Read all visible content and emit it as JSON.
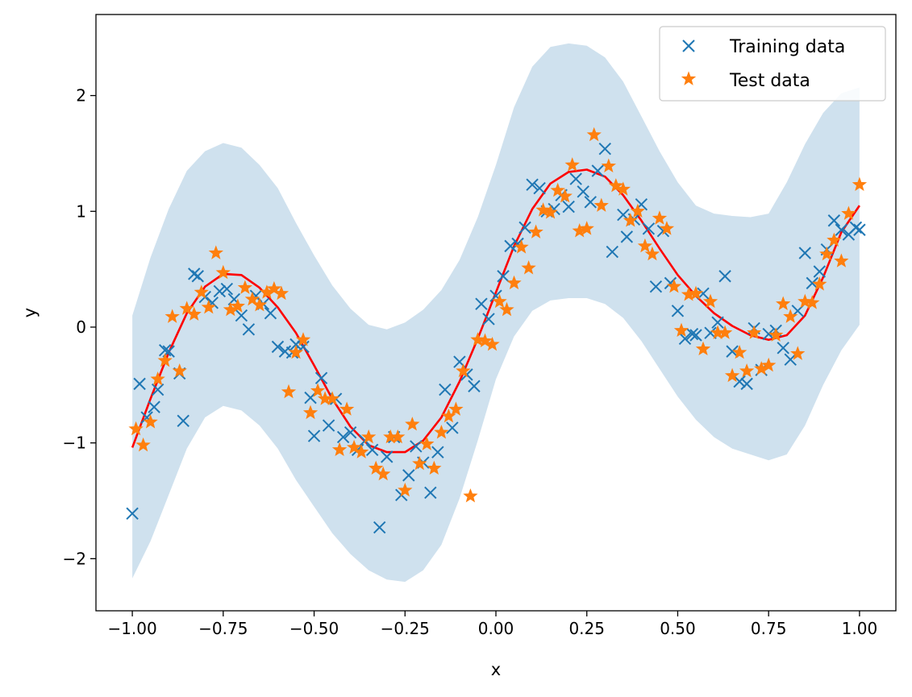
{
  "chart_data": {
    "type": "scatter",
    "title": "",
    "xlabel": "x",
    "ylabel": "y",
    "xlim": [
      -1.1,
      1.1
    ],
    "ylim": [
      -2.45,
      2.7
    ],
    "xticks": [
      -1.0,
      -0.75,
      -0.5,
      -0.25,
      0.0,
      0.25,
      0.5,
      0.75,
      1.0
    ],
    "xtick_labels": [
      "−1.00",
      "−0.75",
      "−0.50",
      "−0.25",
      "0.00",
      "0.25",
      "0.50",
      "0.75",
      "1.00"
    ],
    "yticks": [
      -2,
      -1,
      0,
      1,
      2
    ],
    "ytick_labels": [
      "−2",
      "−1",
      "0",
      "1",
      "2"
    ],
    "grid": false,
    "legend_position": "upper-right",
    "legend": [
      "Training data",
      "Test data"
    ],
    "colors": {
      "training": "#1f77b4",
      "test": "#ff7f0e",
      "mean": "#ff0000",
      "band": "#cfe1ee"
    },
    "mean_curve": {
      "x": [
        -1.0,
        -0.95,
        -0.9,
        -0.85,
        -0.8,
        -0.75,
        -0.7,
        -0.65,
        -0.6,
        -0.55,
        -0.5,
        -0.45,
        -0.4,
        -0.35,
        -0.3,
        -0.25,
        -0.2,
        -0.15,
        -0.1,
        -0.05,
        0.0,
        0.05,
        0.1,
        0.15,
        0.2,
        0.25,
        0.3,
        0.35,
        0.4,
        0.45,
        0.5,
        0.55,
        0.6,
        0.65,
        0.7,
        0.75,
        0.8,
        0.85,
        0.9,
        0.95,
        1.0
      ],
      "y": [
        -1.04,
        -0.62,
        -0.22,
        0.12,
        0.35,
        0.46,
        0.45,
        0.34,
        0.17,
        -0.05,
        -0.33,
        -0.62,
        -0.86,
        -1.02,
        -1.08,
        -1.08,
        -0.98,
        -0.78,
        -0.47,
        -0.1,
        0.3,
        0.7,
        1.02,
        1.24,
        1.34,
        1.36,
        1.3,
        1.14,
        0.92,
        0.68,
        0.45,
        0.27,
        0.12,
        0.01,
        -0.07,
        -0.11,
        -0.07,
        0.1,
        0.43,
        0.82,
        1.05
      ]
    },
    "confidence_band": {
      "x": [
        -1.0,
        -0.95,
        -0.9,
        -0.85,
        -0.8,
        -0.75,
        -0.7,
        -0.65,
        -0.6,
        -0.55,
        -0.5,
        -0.45,
        -0.4,
        -0.35,
        -0.3,
        -0.25,
        -0.2,
        -0.15,
        -0.1,
        -0.05,
        0.0,
        0.05,
        0.1,
        0.15,
        0.2,
        0.25,
        0.3,
        0.35,
        0.4,
        0.45,
        0.5,
        0.55,
        0.6,
        0.65,
        0.7,
        0.75,
        0.8,
        0.85,
        0.9,
        0.95,
        1.0
      ],
      "upper": [
        0.1,
        0.6,
        1.02,
        1.35,
        1.52,
        1.59,
        1.55,
        1.4,
        1.2,
        0.9,
        0.62,
        0.36,
        0.16,
        0.02,
        -0.02,
        0.04,
        0.15,
        0.32,
        0.58,
        0.95,
        1.4,
        1.9,
        2.25,
        2.42,
        2.45,
        2.43,
        2.33,
        2.12,
        1.82,
        1.52,
        1.25,
        1.05,
        0.98,
        0.96,
        0.95,
        0.98,
        1.25,
        1.58,
        1.85,
        2.02,
        2.07
      ],
      "lower": [
        -2.17,
        -1.85,
        -1.45,
        -1.05,
        -0.78,
        -0.68,
        -0.72,
        -0.85,
        -1.05,
        -1.32,
        -1.55,
        -1.78,
        -1.96,
        -2.1,
        -2.18,
        -2.2,
        -2.1,
        -1.88,
        -1.48,
        -0.98,
        -0.45,
        -0.08,
        0.14,
        0.23,
        0.25,
        0.25,
        0.2,
        0.08,
        -0.12,
        -0.36,
        -0.6,
        -0.8,
        -0.95,
        -1.05,
        -1.1,
        -1.15,
        -1.1,
        -0.85,
        -0.5,
        -0.2,
        0.02
      ]
    },
    "series": [
      {
        "name": "Training data",
        "marker": "x",
        "x": [
          -1.0,
          -0.98,
          -0.96,
          -0.94,
          -0.93,
          -0.91,
          -0.9,
          -0.87,
          -0.86,
          -0.83,
          -0.82,
          -0.8,
          -0.78,
          -0.76,
          -0.74,
          -0.72,
          -0.7,
          -0.68,
          -0.66,
          -0.64,
          -0.62,
          -0.6,
          -0.58,
          -0.56,
          -0.55,
          -0.53,
          -0.51,
          -0.5,
          -0.48,
          -0.46,
          -0.44,
          -0.42,
          -0.4,
          -0.38,
          -0.36,
          -0.34,
          -0.32,
          -0.3,
          -0.28,
          -0.26,
          -0.24,
          -0.22,
          -0.2,
          -0.18,
          -0.16,
          -0.14,
          -0.12,
          -0.1,
          -0.08,
          -0.06,
          -0.04,
          -0.02,
          0.0,
          0.02,
          0.04,
          0.06,
          0.08,
          0.1,
          0.12,
          0.14,
          0.16,
          0.18,
          0.2,
          0.22,
          0.24,
          0.26,
          0.28,
          0.3,
          0.32,
          0.35,
          0.36,
          0.38,
          0.4,
          0.42,
          0.44,
          0.46,
          0.48,
          0.5,
          0.52,
          0.54,
          0.55,
          0.57,
          0.59,
          0.61,
          0.63,
          0.65,
          0.67,
          0.69,
          0.71,
          0.73,
          0.75,
          0.77,
          0.79,
          0.81,
          0.83,
          0.85,
          0.87,
          0.89,
          0.91,
          0.93,
          0.95,
          0.97,
          0.99,
          1.0
        ],
        "y": [
          -1.61,
          -0.49,
          -0.78,
          -0.69,
          -0.54,
          -0.2,
          -0.21,
          -0.4,
          -0.81,
          0.46,
          0.44,
          0.26,
          0.21,
          0.31,
          0.33,
          0.24,
          0.1,
          -0.02,
          0.27,
          0.2,
          0.12,
          -0.17,
          -0.21,
          -0.22,
          -0.15,
          -0.17,
          -0.61,
          -0.94,
          -0.44,
          -0.85,
          -0.62,
          -0.95,
          -0.91,
          -1.06,
          -0.98,
          -1.06,
          -1.73,
          -1.12,
          -0.95,
          -1.45,
          -1.28,
          -1.03,
          -1.17,
          -1.43,
          -1.08,
          -0.54,
          -0.87,
          -0.3,
          -0.41,
          -0.51,
          0.2,
          0.07,
          0.27,
          0.44,
          0.7,
          0.72,
          0.86,
          1.23,
          1.2,
          1.0,
          1.02,
          1.14,
          1.04,
          1.28,
          1.17,
          1.08,
          1.35,
          1.54,
          0.65,
          0.97,
          0.78,
          0.93,
          1.06,
          0.85,
          0.35,
          0.83,
          0.38,
          0.14,
          -0.1,
          -0.06,
          -0.07,
          0.29,
          -0.05,
          0.04,
          0.44,
          -0.21,
          -0.47,
          -0.49,
          -0.01,
          -0.37,
          -0.06,
          -0.03,
          -0.18,
          -0.28,
          0.14,
          0.64,
          0.38,
          0.48,
          0.67,
          0.92,
          0.84,
          0.8,
          0.86,
          0.84
        ]
      },
      {
        "name": "Test data",
        "marker": "*",
        "x": [
          -0.99,
          -0.97,
          -0.95,
          -0.93,
          -0.91,
          -0.89,
          -0.87,
          -0.85,
          -0.83,
          -0.81,
          -0.79,
          -0.77,
          -0.75,
          -0.73,
          -0.71,
          -0.69,
          -0.67,
          -0.65,
          -0.63,
          -0.61,
          -0.59,
          -0.57,
          -0.55,
          -0.53,
          -0.51,
          -0.49,
          -0.47,
          -0.45,
          -0.43,
          -0.41,
          -0.39,
          -0.37,
          -0.35,
          -0.33,
          -0.31,
          -0.29,
          -0.27,
          -0.25,
          -0.23,
          -0.21,
          -0.19,
          -0.17,
          -0.15,
          -0.13,
          -0.11,
          -0.09,
          -0.07,
          -0.05,
          -0.03,
          -0.01,
          0.01,
          0.03,
          0.05,
          0.07,
          0.09,
          0.11,
          0.13,
          0.15,
          0.17,
          0.19,
          0.21,
          0.23,
          0.25,
          0.27,
          0.29,
          0.31,
          0.33,
          0.35,
          0.37,
          0.39,
          0.41,
          0.43,
          0.45,
          0.47,
          0.49,
          0.51,
          0.53,
          0.55,
          0.57,
          0.59,
          0.61,
          0.63,
          0.65,
          0.67,
          0.69,
          0.71,
          0.73,
          0.75,
          0.77,
          0.79,
          0.81,
          0.83,
          0.85,
          0.87,
          0.89,
          0.91,
          0.93,
          0.95,
          0.97,
          1.0
        ],
        "y": [
          -0.88,
          -1.02,
          -0.82,
          -0.45,
          -0.29,
          0.09,
          -0.38,
          0.16,
          0.11,
          0.3,
          0.17,
          0.64,
          0.47,
          0.15,
          0.18,
          0.34,
          0.24,
          0.19,
          0.3,
          0.33,
          0.29,
          -0.56,
          -0.22,
          -0.11,
          -0.74,
          -0.55,
          -0.62,
          -0.62,
          -1.06,
          -0.71,
          -1.04,
          -1.08,
          -0.95,
          -1.22,
          -1.27,
          -0.95,
          -0.95,
          -1.41,
          -0.84,
          -1.18,
          -1.01,
          -1.22,
          -0.91,
          -0.77,
          -0.71,
          -0.38,
          -1.46,
          -0.11,
          -0.12,
          -0.15,
          0.22,
          0.15,
          0.38,
          0.69,
          0.51,
          0.82,
          1.01,
          0.99,
          1.18,
          1.13,
          1.4,
          0.83,
          0.85,
          1.66,
          1.05,
          1.39,
          1.22,
          1.19,
          0.92,
          1.0,
          0.7,
          0.63,
          0.94,
          0.85,
          0.35,
          -0.03,
          0.28,
          0.29,
          -0.19,
          0.22,
          -0.05,
          -0.05,
          -0.42,
          -0.22,
          -0.38,
          -0.05,
          -0.36,
          -0.33,
          -0.07,
          0.2,
          0.09,
          -0.23,
          0.22,
          0.21,
          0.37,
          0.63,
          0.75,
          0.57,
          0.98,
          1.23
        ]
      }
    ]
  }
}
